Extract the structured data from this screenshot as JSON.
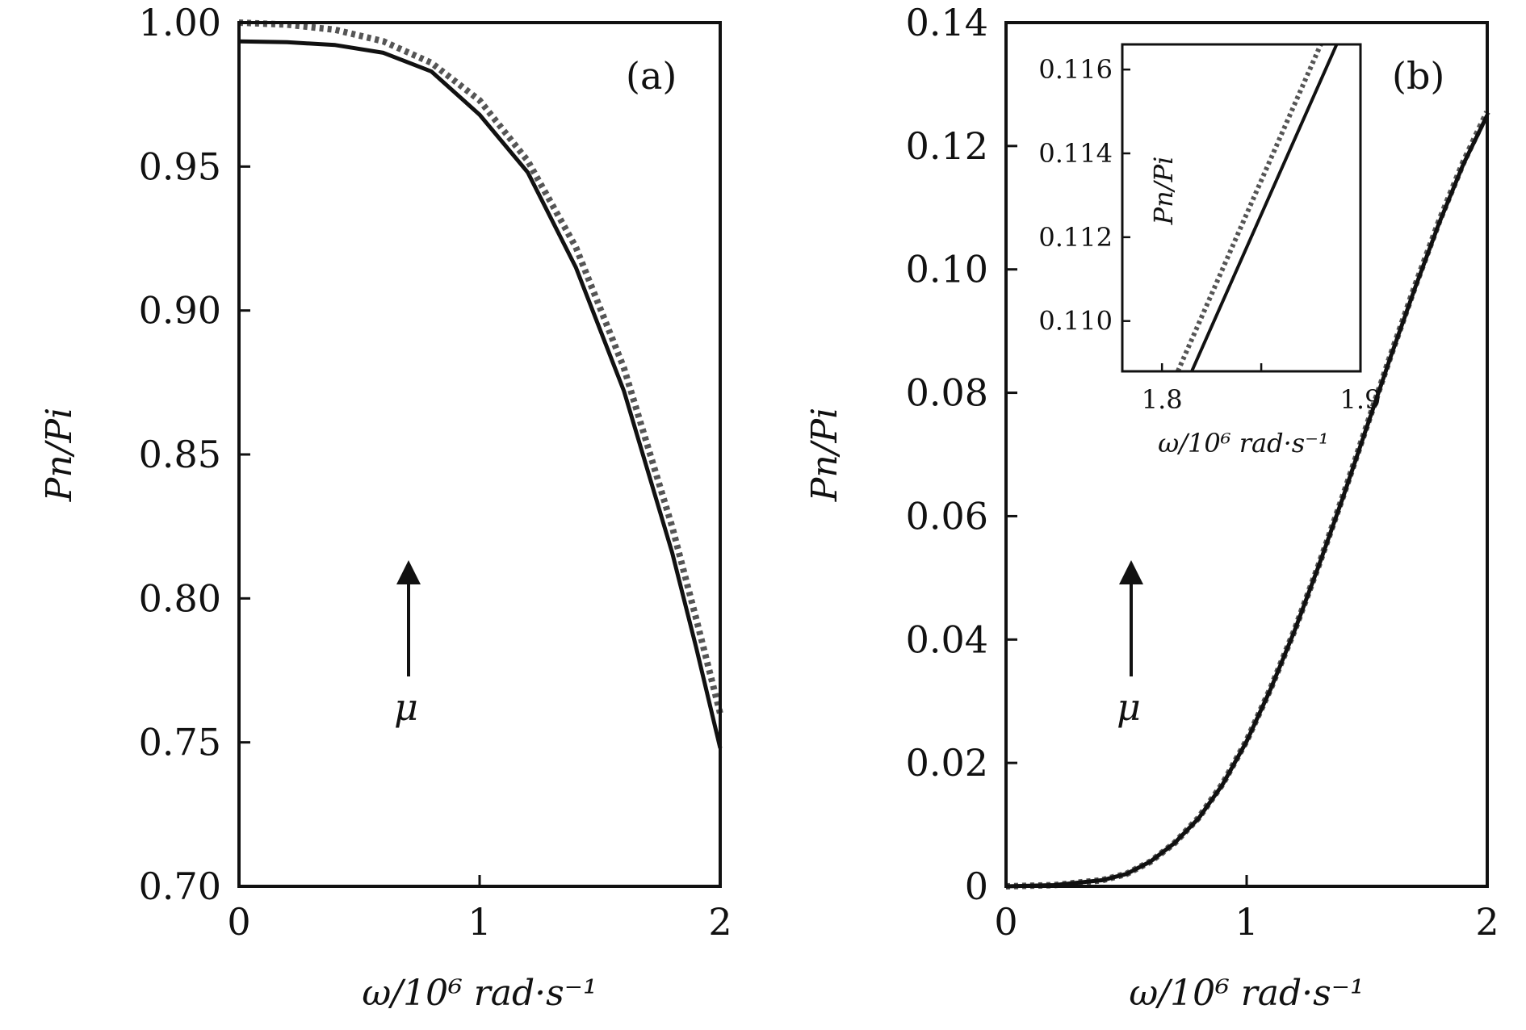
{
  "chart_data": [
    {
      "type": "line",
      "panel_label": "(a)",
      "xlabel": "ω/10⁶ rad·s⁻¹",
      "ylabel": "Pn/Pi",
      "xlim": [
        0,
        2
      ],
      "ylim": [
        0.7,
        1.0
      ],
      "xticks": [
        "0",
        "1",
        "2"
      ],
      "yticks": [
        "0.70",
        "0.75",
        "0.80",
        "0.85",
        "0.90",
        "0.95",
        "1.00"
      ],
      "arrow_label": "μ",
      "series": [
        {
          "style": "solid",
          "color": "#111111",
          "x": [
            0,
            0.2,
            0.4,
            0.6,
            0.8,
            1.0,
            1.2,
            1.4,
            1.6,
            1.8,
            1.9,
            2.0
          ],
          "y": [
            0.9935,
            0.9932,
            0.9922,
            0.9895,
            0.983,
            0.968,
            0.948,
            0.915,
            0.872,
            0.816,
            0.783,
            0.748
          ]
        },
        {
          "style": "dotted",
          "color": "#555555",
          "x": [
            0,
            0.2,
            0.4,
            0.6,
            0.8,
            1.0,
            1.2,
            1.4,
            1.6,
            1.8,
            1.9,
            2.0
          ],
          "y": [
            1.0,
            0.9993,
            0.9975,
            0.9935,
            0.986,
            0.973,
            0.952,
            0.922,
            0.88,
            0.825,
            0.793,
            0.76
          ]
        }
      ]
    },
    {
      "type": "line",
      "panel_label": "(b)",
      "xlabel": "ω/10⁶ rad·s⁻¹",
      "ylabel": "Pn/Pi",
      "xlim": [
        0,
        2
      ],
      "ylim": [
        0,
        0.14
      ],
      "xticks": [
        "0",
        "1",
        "2"
      ],
      "yticks": [
        "0",
        "0.02",
        "0.04",
        "0.06",
        "0.08",
        "0.10",
        "0.12",
        "0.14"
      ],
      "arrow_label": "μ",
      "series": [
        {
          "style": "solid",
          "color": "#111111",
          "x": [
            0,
            0.2,
            0.4,
            0.5,
            0.6,
            0.7,
            0.8,
            0.9,
            1.0,
            1.1,
            1.2,
            1.3,
            1.4,
            1.5,
            1.6,
            1.7,
            1.8,
            1.9,
            2.0
          ],
          "y": [
            0.0,
            0.0002,
            0.001,
            0.002,
            0.004,
            0.007,
            0.011,
            0.0165,
            0.0235,
            0.032,
            0.0415,
            0.052,
            0.063,
            0.0745,
            0.086,
            0.097,
            0.1075,
            0.117,
            0.125
          ]
        },
        {
          "style": "dotted",
          "color": "#555555",
          "x": [
            0,
            0.2,
            0.4,
            0.5,
            0.6,
            0.7,
            0.8,
            0.9,
            1.0,
            1.1,
            1.2,
            1.3,
            1.4,
            1.5,
            1.6,
            1.7,
            1.8,
            1.9,
            2.0
          ],
          "y": [
            0.0,
            0.0002,
            0.001,
            0.002,
            0.004,
            0.007,
            0.0111,
            0.0166,
            0.0236,
            0.0321,
            0.0416,
            0.0521,
            0.0632,
            0.0747,
            0.0862,
            0.0973,
            0.1078,
            0.1173,
            0.1255
          ]
        }
      ],
      "inset": {
        "xlabel": "ω/10⁶ rad·s⁻¹",
        "ylabel": "Pn/Pi",
        "xlim": [
          1.78,
          1.9
        ],
        "ylim": [
          0.1088,
          0.1166
        ],
        "xticks": [
          "1.8",
          "1.9"
        ],
        "yticks": [
          "0.110",
          "0.112",
          "0.114",
          "0.116"
        ],
        "series": [
          {
            "style": "solid",
            "color": "#111111",
            "x": [
              1.815,
              1.888
            ],
            "y": [
              0.1088,
              0.1166
            ]
          },
          {
            "style": "dotted",
            "color": "#555555",
            "x": [
              1.808,
              1.88
            ],
            "y": [
              0.1088,
              0.1166
            ]
          }
        ]
      }
    }
  ]
}
